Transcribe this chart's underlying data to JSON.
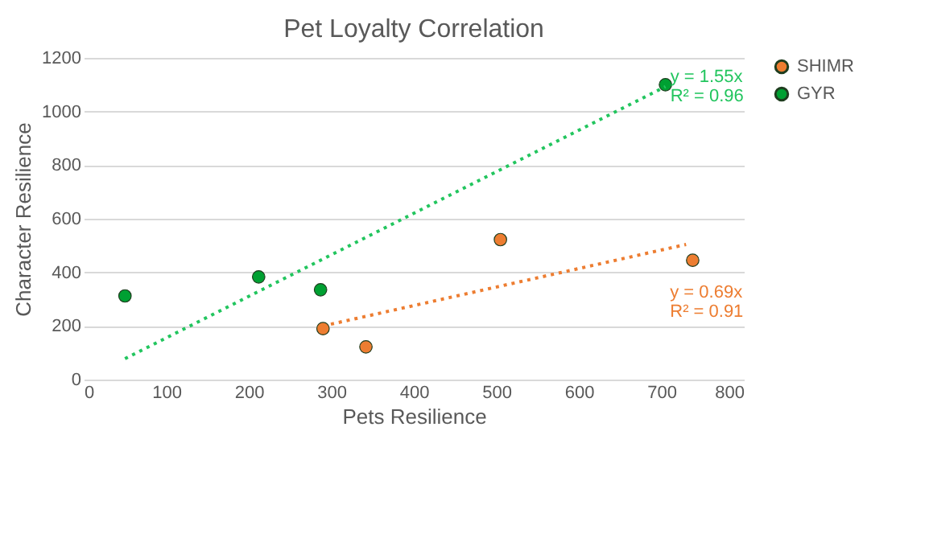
{
  "chart_data": {
    "type": "scatter",
    "title": "Pet Loyalty Correlation",
    "xlabel": "Pets Resilience",
    "ylabel": "Character Resilience",
    "series": [
      {
        "name": "SHIMR",
        "color": "#ed7d31",
        "x": [
          290,
          342,
          505,
          738
        ],
        "values": [
          190,
          122,
          522,
          445
        ]
      },
      {
        "name": "GYR",
        "color": "#00a032",
        "x": [
          50,
          212,
          287,
          705
        ],
        "values": [
          312,
          383,
          335,
          1100
        ]
      },
      {
        "type": "line",
        "color": "#22c55e",
        "line_style": "dotted",
        "marker": "none",
        "x": [
          50,
          705
        ],
        "values": [
          78,
          1093
        ]
      },
      {
        "type": "line",
        "color": "#ed7d31",
        "line_style": "dotted",
        "marker": "none",
        "x": [
          290,
          730
        ],
        "values": [
          200,
          504
        ]
      }
    ],
    "annotations": [
      "y = 1.55x",
      "R² = 0.96",
      "y = 0.69x",
      "R² = 0.91"
    ],
    "xlim": [
      0,
      800
    ],
    "xticks": [
      0,
      100,
      200,
      300,
      400,
      500,
      600,
      700,
      800
    ],
    "ylim": [
      0,
      1200
    ],
    "yticks": [
      0,
      200,
      400,
      600,
      800,
      1000,
      {
        "value": 1200,
        "label": "1200"
      }
    ],
    "grid": "y",
    "legend": "right",
    "marker": "circle"
  }
}
